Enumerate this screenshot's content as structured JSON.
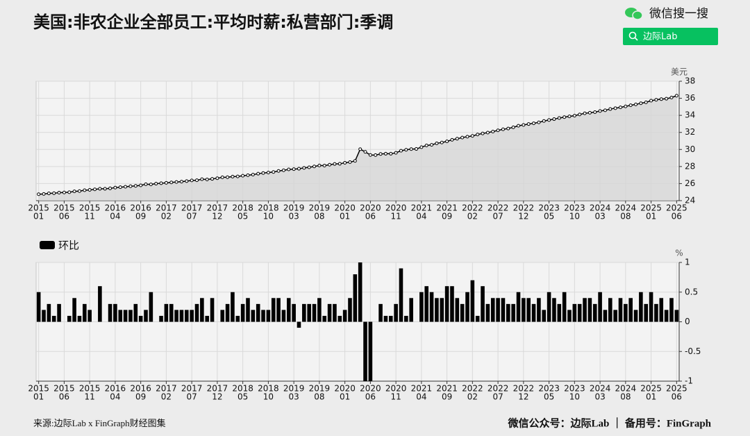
{
  "header": {
    "title": "美国:非农企业全部员工:平均时薪:私营部门:季调",
    "brand": "微信搜一搜",
    "search": "边际Lab"
  },
  "footer": {
    "source": "来源:边际Lab x FinGraph财经图集",
    "account": "微信公众号：边际Lab ｜ 备用号：FinGraph"
  },
  "chart_data": [
    {
      "type": "line",
      "area": true,
      "area_color": "#d6d6d6",
      "marker": "circle",
      "y_unit": "美元",
      "categories": [
        [
          "2015",
          "01"
        ],
        null,
        null,
        null,
        null,
        [
          "2015",
          "06"
        ],
        null,
        null,
        null,
        null,
        [
          "2015",
          "11"
        ],
        null,
        null,
        null,
        null,
        [
          "2016",
          "04"
        ],
        null,
        null,
        null,
        null,
        [
          "2016",
          "09"
        ],
        null,
        null,
        null,
        null,
        [
          "2017",
          "02"
        ],
        null,
        null,
        null,
        null,
        [
          "2017",
          "07"
        ],
        null,
        null,
        null,
        null,
        [
          "2017",
          "12"
        ],
        null,
        null,
        null,
        null,
        [
          "2018",
          "05"
        ],
        null,
        null,
        null,
        null,
        [
          "2018",
          "10"
        ],
        null,
        null,
        null,
        null,
        [
          "2019",
          "03"
        ],
        null,
        null,
        null,
        null,
        [
          "2019",
          "08"
        ],
        null,
        null,
        null,
        null,
        [
          "2020",
          "01"
        ],
        null,
        null,
        null,
        null,
        [
          "2020",
          "06"
        ],
        null,
        null,
        null,
        null,
        [
          "2020",
          "11"
        ],
        null,
        null,
        null,
        null,
        [
          "2021",
          "04"
        ],
        null,
        null,
        null,
        null,
        [
          "2021",
          "09"
        ],
        null,
        null,
        null,
        null,
        [
          "2022",
          "02"
        ],
        null,
        null,
        null,
        null,
        [
          "2022",
          "07"
        ],
        null,
        null,
        null,
        null,
        [
          "2022",
          "12"
        ],
        null,
        null,
        null,
        null,
        [
          "2023",
          "05"
        ],
        null,
        null,
        null,
        null,
        [
          "2023",
          "10"
        ],
        null,
        null,
        null,
        null,
        [
          "2024",
          "03"
        ],
        null,
        null,
        null,
        null,
        [
          "2024",
          "08"
        ],
        null,
        null,
        null,
        null,
        [
          "2025",
          "01"
        ],
        null,
        null,
        null,
        null,
        [
          "2025",
          "06"
        ]
      ],
      "series": [
        {
          "color": "#000000",
          "values": [
            24.75,
            24.78,
            24.85,
            24.87,
            24.94,
            24.96,
            24.99,
            25.09,
            25.12,
            25.22,
            25.26,
            25.32,
            25.39,
            25.39,
            25.44,
            25.53,
            25.58,
            25.63,
            25.69,
            25.73,
            25.79,
            25.92,
            25.9,
            25.99,
            26.04,
            26.09,
            26.14,
            26.19,
            26.23,
            26.29,
            26.37,
            26.39,
            26.51,
            26.48,
            26.55,
            26.63,
            26.74,
            26.75,
            26.82,
            26.84,
            26.92,
            26.98,
            27.05,
            27.16,
            27.24,
            27.3,
            27.36,
            27.48,
            27.56,
            27.66,
            27.69,
            27.74,
            27.84,
            27.91,
            28.01,
            28.12,
            28.11,
            28.21,
            28.3,
            28.32,
            28.44,
            28.52,
            28.66,
            30.03,
            29.72,
            29.35,
            29.34,
            29.47,
            29.5,
            29.5,
            29.61,
            29.85,
            29.96,
            30.04,
            30.06,
            30.27,
            30.47,
            30.54,
            30.72,
            30.82,
            30.95,
            31.13,
            31.26,
            31.4,
            31.5,
            31.59,
            31.75,
            31.88,
            31.98,
            32.1,
            32.24,
            32.36,
            32.46,
            32.6,
            32.78,
            32.87,
            32.98,
            33.07,
            33.18,
            33.34,
            33.45,
            33.56,
            33.69,
            33.79,
            33.88,
            33.96,
            34.1,
            34.24,
            34.31,
            34.38,
            34.51,
            34.59,
            34.74,
            34.84,
            34.94,
            35.05,
            35.18,
            35.28,
            35.42,
            35.53,
            35.72,
            35.82,
            35.9,
            35.95,
            36.09,
            36.3
          ]
        }
      ],
      "ylim": [
        24,
        38
      ],
      "yticks": [
        24,
        26,
        28,
        30,
        32,
        34,
        36,
        38
      ],
      "grid": true
    },
    {
      "type": "bar",
      "y_unit": "%",
      "legend": "top-left",
      "categories": [
        [
          "2015",
          "01"
        ],
        null,
        null,
        null,
        null,
        [
          "2015",
          "06"
        ],
        null,
        null,
        null,
        null,
        [
          "2015",
          "11"
        ],
        null,
        null,
        null,
        null,
        [
          "2016",
          "04"
        ],
        null,
        null,
        null,
        null,
        [
          "2016",
          "09"
        ],
        null,
        null,
        null,
        null,
        [
          "2017",
          "02"
        ],
        null,
        null,
        null,
        null,
        [
          "2017",
          "07"
        ],
        null,
        null,
        null,
        null,
        [
          "2017",
          "12"
        ],
        null,
        null,
        null,
        null,
        [
          "2018",
          "05"
        ],
        null,
        null,
        null,
        null,
        [
          "2018",
          "10"
        ],
        null,
        null,
        null,
        null,
        [
          "2019",
          "03"
        ],
        null,
        null,
        null,
        null,
        [
          "2019",
          "08"
        ],
        null,
        null,
        null,
        null,
        [
          "2020",
          "01"
        ],
        null,
        null,
        null,
        null,
        [
          "2020",
          "06"
        ],
        null,
        null,
        null,
        null,
        [
          "2020",
          "11"
        ],
        null,
        null,
        null,
        null,
        [
          "2021",
          "04"
        ],
        null,
        null,
        null,
        null,
        [
          "2021",
          "09"
        ],
        null,
        null,
        null,
        null,
        [
          "2022",
          "02"
        ],
        null,
        null,
        null,
        null,
        [
          "2022",
          "07"
        ],
        null,
        null,
        null,
        null,
        [
          "2022",
          "12"
        ],
        null,
        null,
        null,
        null,
        [
          "2023",
          "05"
        ],
        null,
        null,
        null,
        null,
        [
          "2023",
          "10"
        ],
        null,
        null,
        null,
        null,
        [
          "2024",
          "03"
        ],
        null,
        null,
        null,
        null,
        [
          "2024",
          "08"
        ],
        null,
        null,
        null,
        null,
        [
          "2025",
          "01"
        ],
        null,
        null,
        null,
        null,
        [
          "2025",
          "06"
        ]
      ],
      "series": [
        {
          "name": "环比",
          "color": "#000000",
          "values": [
            0.5,
            0.2,
            0.3,
            0.1,
            0.3,
            0,
            0.1,
            0.4,
            0.1,
            0.3,
            0.2,
            0,
            0.6,
            0,
            0.3,
            0.3,
            0.2,
            0.2,
            0.2,
            0.3,
            0.1,
            0.2,
            0.5,
            0,
            0.1,
            0.3,
            0.3,
            0.2,
            0.2,
            0.2,
            0.2,
            0.3,
            0.4,
            0.1,
            0.4,
            0,
            0.2,
            0.3,
            0.5,
            0.1,
            0.3,
            0.4,
            0.2,
            0.3,
            0.2,
            0.2,
            0.4,
            0.4,
            0.2,
            0.4,
            0.3,
            -0.1,
            0.3,
            0.3,
            0.3,
            0.4,
            0.1,
            0.3,
            0.3,
            0.1,
            0.2,
            0.4,
            0.8,
            1,
            -1,
            -1,
            0,
            0.3,
            0.1,
            0.1,
            0.3,
            0.9,
            0.1,
            0.4,
            0,
            0.5,
            0.6,
            0.5,
            0.4,
            0.4,
            0.6,
            0.6,
            0.4,
            0.3,
            0.5,
            0.7,
            0.1,
            0.6,
            0.3,
            0.4,
            0.4,
            0.4,
            0.3,
            0.3,
            0.5,
            0.4,
            0.4,
            0.3,
            0.4,
            0.2,
            0.5,
            0.4,
            0.3,
            0.5,
            0.2,
            0.3,
            0.3,
            0.4,
            0.4,
            0.3,
            0.5,
            0.2,
            0.4,
            0.2,
            0.4,
            0.3,
            0.4,
            0.2,
            0.5,
            0.3,
            0.5,
            0.3,
            0.4,
            0.2,
            0.4,
            0.2
          ]
        }
      ],
      "ylim": [
        -1,
        1
      ],
      "yticks": [
        -1,
        -0.5,
        0,
        0.5,
        1
      ],
      "grid": true
    }
  ]
}
